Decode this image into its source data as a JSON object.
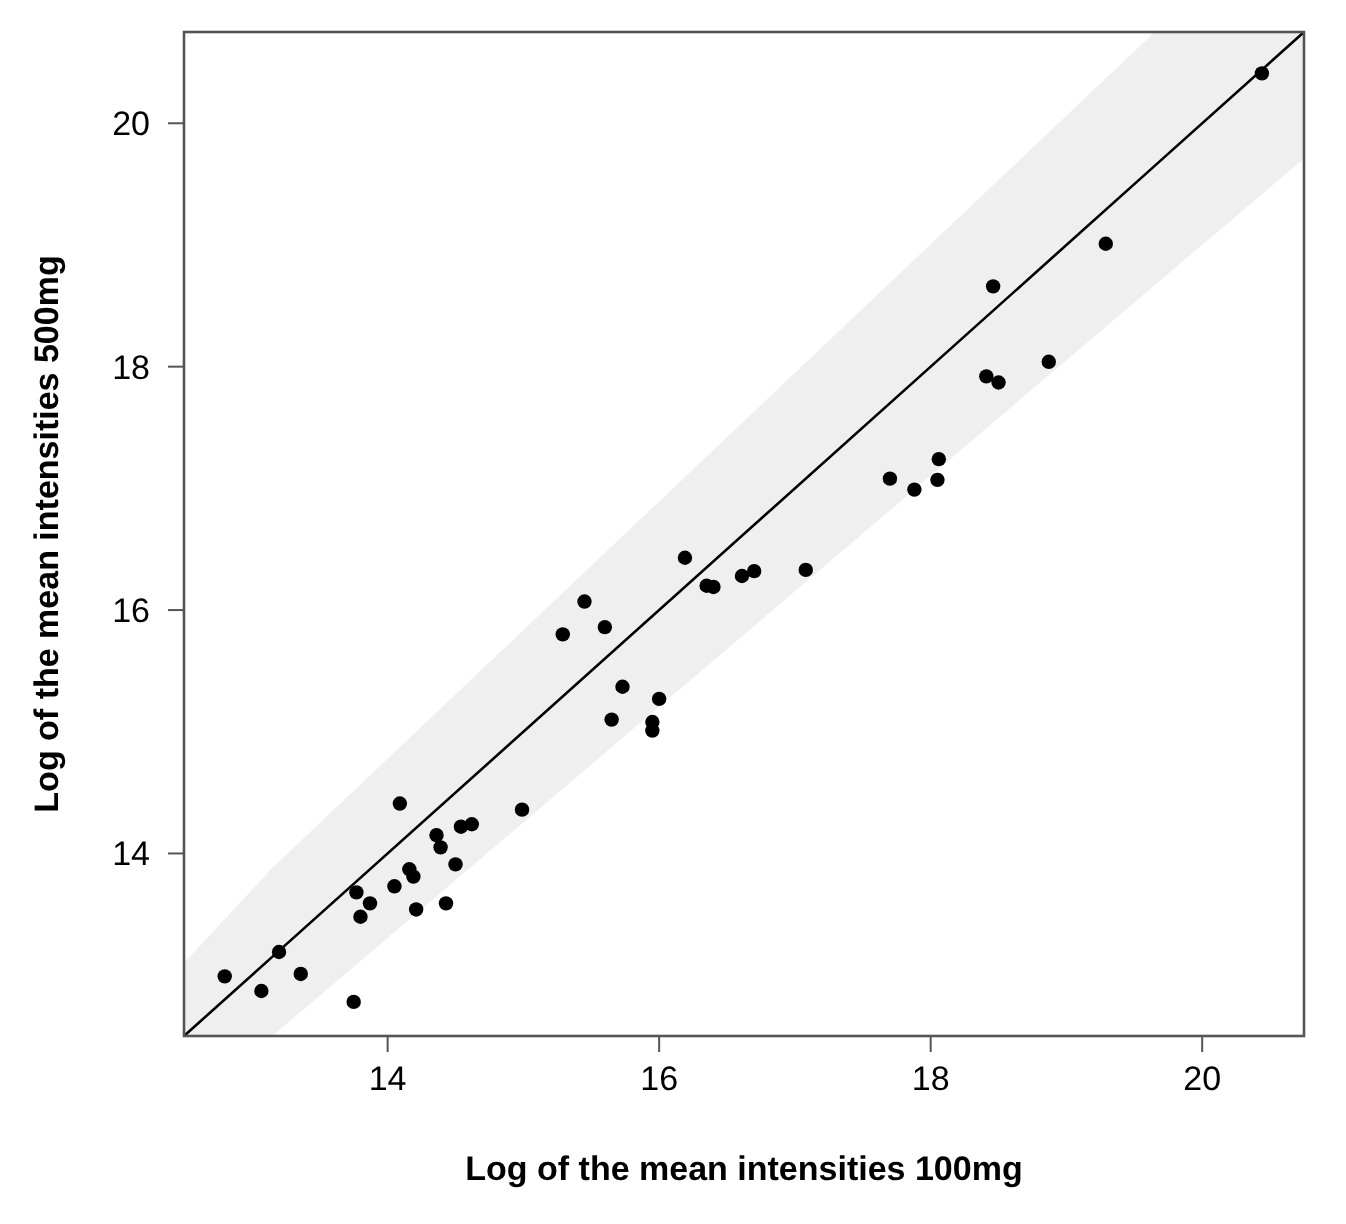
{
  "chart_data": {
    "type": "scatter",
    "xlabel": "Log of the mean intensities 100mg",
    "ylabel": "Log of the mean intensities 500mg",
    "xlim": [
      12.5,
      20.75
    ],
    "ylim": [
      12.5,
      20.75
    ],
    "xticks": [
      14,
      16,
      18,
      20
    ],
    "yticks": [
      14,
      16,
      18,
      20
    ],
    "grid": false,
    "marker": "circle",
    "series": [
      {
        "type": "line",
        "color": "#000000",
        "line_style": "solid",
        "marker": "none",
        "x": [
          12.5,
          13.15,
          19.65,
          20.75
        ],
        "values": [
          12.5,
          13.15,
          19.65,
          20.75
        ],
        "lower": [
          12.5,
          12.5,
          18.67,
          19.71
        ],
        "upper": [
          13.1,
          13.88,
          20.75,
          20.75
        ]
      },
      {
        "color": "#000000",
        "x": [
          12.8,
          13.07,
          13.2,
          13.36,
          13.75,
          13.77,
          13.87,
          13.8,
          14.09,
          14.05,
          14.16,
          14.19,
          14.21,
          14.36,
          14.39,
          14.5,
          14.43,
          14.54,
          14.62,
          14.99,
          15.29,
          15.45,
          15.6,
          15.73,
          15.65,
          16.0,
          15.95,
          15.95,
          16.19,
          16.35,
          16.4,
          16.61,
          16.7,
          17.08,
          17.7,
          20.44,
          19.29,
          18.46,
          18.41,
          18.5,
          18.87,
          18.06,
          18.05,
          17.88
        ],
        "values": [
          12.99,
          12.87,
          13.19,
          13.01,
          12.78,
          13.68,
          13.59,
          13.48,
          14.41,
          13.73,
          13.87,
          13.81,
          13.54,
          14.15,
          14.05,
          13.91,
          13.59,
          14.22,
          14.24,
          14.36,
          15.8,
          16.07,
          15.86,
          15.37,
          15.1,
          15.27,
          15.08,
          15.01,
          16.43,
          16.2,
          16.19,
          16.28,
          16.32,
          16.33,
          17.08,
          20.41,
          19.01,
          18.66,
          17.92,
          17.87,
          18.04,
          17.24,
          17.07,
          16.99
        ]
      }
    ]
  }
}
